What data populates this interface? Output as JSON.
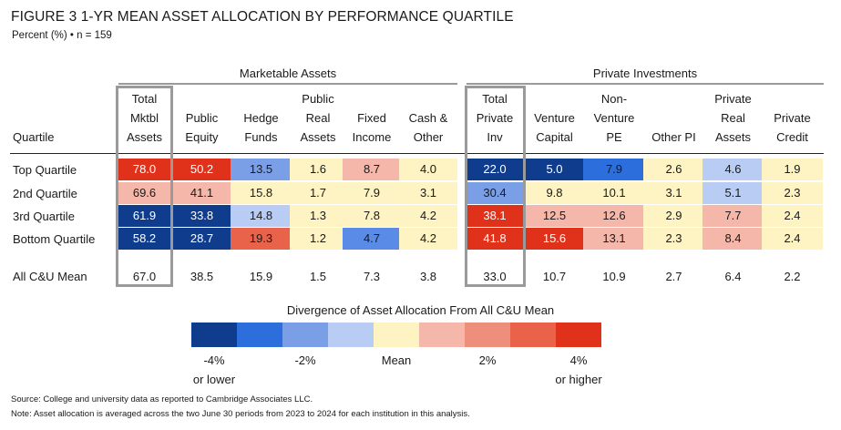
{
  "title": "FIGURE 3  1-YR MEAN ASSET ALLOCATION BY PERFORMANCE QUARTILE",
  "subtitle": "Percent (%) • n = 159",
  "groups": [
    {
      "label": "Marketable Assets"
    },
    {
      "label": "Private Investments"
    }
  ],
  "columns": [
    {
      "lines": [
        "Total",
        "Mktbl",
        "Assets"
      ]
    },
    {
      "lines": [
        "",
        "Public",
        "Equity"
      ]
    },
    {
      "lines": [
        "",
        "Hedge",
        "Funds"
      ]
    },
    {
      "lines": [
        "Public",
        "Real",
        "Assets"
      ]
    },
    {
      "lines": [
        "",
        "Fixed",
        "Income"
      ]
    },
    {
      "lines": [
        "",
        "Cash &",
        "Other"
      ]
    },
    {
      "lines": [
        "Total",
        "Private",
        "Inv"
      ]
    },
    {
      "lines": [
        "",
        "Venture",
        "Capital"
      ]
    },
    {
      "lines": [
        "Non-",
        "Venture",
        "PE"
      ]
    },
    {
      "lines": [
        "",
        "",
        "Other PI"
      ]
    },
    {
      "lines": [
        "Private",
        "Real",
        "Assets"
      ]
    },
    {
      "lines": [
        "",
        "Private",
        "Credit"
      ]
    }
  ],
  "quartile_header": "Quartile",
  "rows": [
    {
      "label": "Top Quartile",
      "values": [
        "78.0",
        "50.2",
        "13.5",
        "1.6",
        "8.7",
        "4.0",
        "22.0",
        "5.0",
        "7.9",
        "2.6",
        "4.6",
        "1.9"
      ],
      "colors": [
        "#e0321b",
        "#e0321b",
        "#7b9fe6",
        "#fdf3c3",
        "#f6b7ab",
        "#fdf3c3",
        "#0f3c8c",
        "#0f3c8c",
        "#2c6fdc",
        "#fdf3c3",
        "#b9cdf4",
        "#fdf3c3"
      ],
      "text": [
        "light",
        "light",
        "dark",
        "dark",
        "dark",
        "dark",
        "light",
        "light",
        "dark",
        "dark",
        "dark",
        "dark"
      ]
    },
    {
      "label": "2nd Quartile",
      "values": [
        "69.6",
        "41.1",
        "15.8",
        "1.7",
        "7.9",
        "3.1",
        "30.4",
        "9.8",
        "10.1",
        "3.1",
        "5.1",
        "2.3"
      ],
      "colors": [
        "#f6b7ab",
        "#f6b7ab",
        "#fdf3c3",
        "#fdf3c3",
        "#fdf3c3",
        "#fdf3c3",
        "#7b9fe6",
        "#fdf3c3",
        "#fdf3c3",
        "#fdf3c3",
        "#b9cdf4",
        "#fdf3c3"
      ],
      "text": [
        "dark",
        "dark",
        "dark",
        "dark",
        "dark",
        "dark",
        "dark",
        "dark",
        "dark",
        "dark",
        "dark",
        "dark"
      ]
    },
    {
      "label": "3rd Quartile",
      "values": [
        "61.9",
        "33.8",
        "14.8",
        "1.3",
        "7.8",
        "4.2",
        "38.1",
        "12.5",
        "12.6",
        "2.9",
        "7.7",
        "2.4"
      ],
      "colors": [
        "#0f3c8c",
        "#0f3c8c",
        "#b9cdf4",
        "#fdf3c3",
        "#fdf3c3",
        "#fdf3c3",
        "#e0321b",
        "#f6b7ab",
        "#f6b7ab",
        "#fdf3c3",
        "#f6b7ab",
        "#fdf3c3"
      ],
      "text": [
        "light",
        "light",
        "dark",
        "dark",
        "dark",
        "dark",
        "light",
        "dark",
        "dark",
        "dark",
        "dark",
        "dark"
      ]
    },
    {
      "label": "Bottom Quartile",
      "values": [
        "58.2",
        "28.7",
        "19.3",
        "1.2",
        "4.7",
        "4.2",
        "41.8",
        "15.6",
        "13.1",
        "2.3",
        "8.4",
        "2.4"
      ],
      "colors": [
        "#0f3c8c",
        "#0f3c8c",
        "#e9624a",
        "#fdf3c3",
        "#5a8be6",
        "#fdf3c3",
        "#e0321b",
        "#e0321b",
        "#f6b7ab",
        "#fdf3c3",
        "#f6b7ab",
        "#fdf3c3"
      ],
      "text": [
        "light",
        "light",
        "dark",
        "dark",
        "dark",
        "dark",
        "light",
        "light",
        "dark",
        "dark",
        "dark",
        "dark"
      ]
    }
  ],
  "mean_row": {
    "label": "All C&U Mean",
    "values": [
      "67.0",
      "38.5",
      "15.9",
      "1.5",
      "7.3",
      "3.8",
      "33.0",
      "10.7",
      "10.9",
      "2.7",
      "6.4",
      "2.2"
    ]
  },
  "legend": {
    "title": "Divergence of Asset Allocation From All C&U Mean",
    "colors": [
      "#0f3c8c",
      "#2c6fdc",
      "#7b9fe6",
      "#b9cdf4",
      "#fdf3c3",
      "#f6b7ab",
      "#ee8f7c",
      "#e9624a",
      "#e0321b"
    ],
    "labels": [
      {
        "text": "-4%",
        "sub": "or lower"
      },
      {
        "text": "-2%",
        "sub": ""
      },
      {
        "text": "Mean",
        "sub": ""
      },
      {
        "text": "2%",
        "sub": ""
      },
      {
        "text": "4%",
        "sub": "or higher"
      }
    ]
  },
  "footnotes": [
    "Source: College and university data as reported to Cambridge Associates LLC.",
    "Note: Asset allocation is averaged across the two June 30 periods from 2023 to 2024 for each institution in this analysis."
  ],
  "chart_data": {
    "type": "table",
    "title": "FIGURE 3  1-YR MEAN ASSET ALLOCATION BY PERFORMANCE QUARTILE",
    "categories": [
      "Total Mktbl Assets",
      "Public Equity",
      "Hedge Funds",
      "Public Real Assets",
      "Fixed Income",
      "Cash & Other",
      "Total Private Inv",
      "Venture Capital",
      "Non-Venture PE",
      "Other PI",
      "Private Real Assets",
      "Private Credit"
    ],
    "series": [
      {
        "name": "Top Quartile",
        "values": [
          78.0,
          50.2,
          13.5,
          1.6,
          8.7,
          4.0,
          22.0,
          5.0,
          7.9,
          2.6,
          4.6,
          1.9
        ]
      },
      {
        "name": "2nd Quartile",
        "values": [
          69.6,
          41.1,
          15.8,
          1.7,
          7.9,
          3.1,
          30.4,
          9.8,
          10.1,
          3.1,
          5.1,
          2.3
        ]
      },
      {
        "name": "3rd Quartile",
        "values": [
          61.9,
          33.8,
          14.8,
          1.3,
          7.8,
          4.2,
          38.1,
          12.5,
          12.6,
          2.9,
          7.7,
          2.4
        ]
      },
      {
        "name": "Bottom Quartile",
        "values": [
          58.2,
          28.7,
          19.3,
          1.2,
          4.7,
          4.2,
          41.8,
          15.6,
          13.1,
          2.3,
          8.4,
          2.4
        ]
      },
      {
        "name": "All C&U Mean",
        "values": [
          67.0,
          38.5,
          15.9,
          1.5,
          7.3,
          3.8,
          33.0,
          10.7,
          10.9,
          2.7,
          6.4,
          2.2
        ]
      }
    ]
  }
}
